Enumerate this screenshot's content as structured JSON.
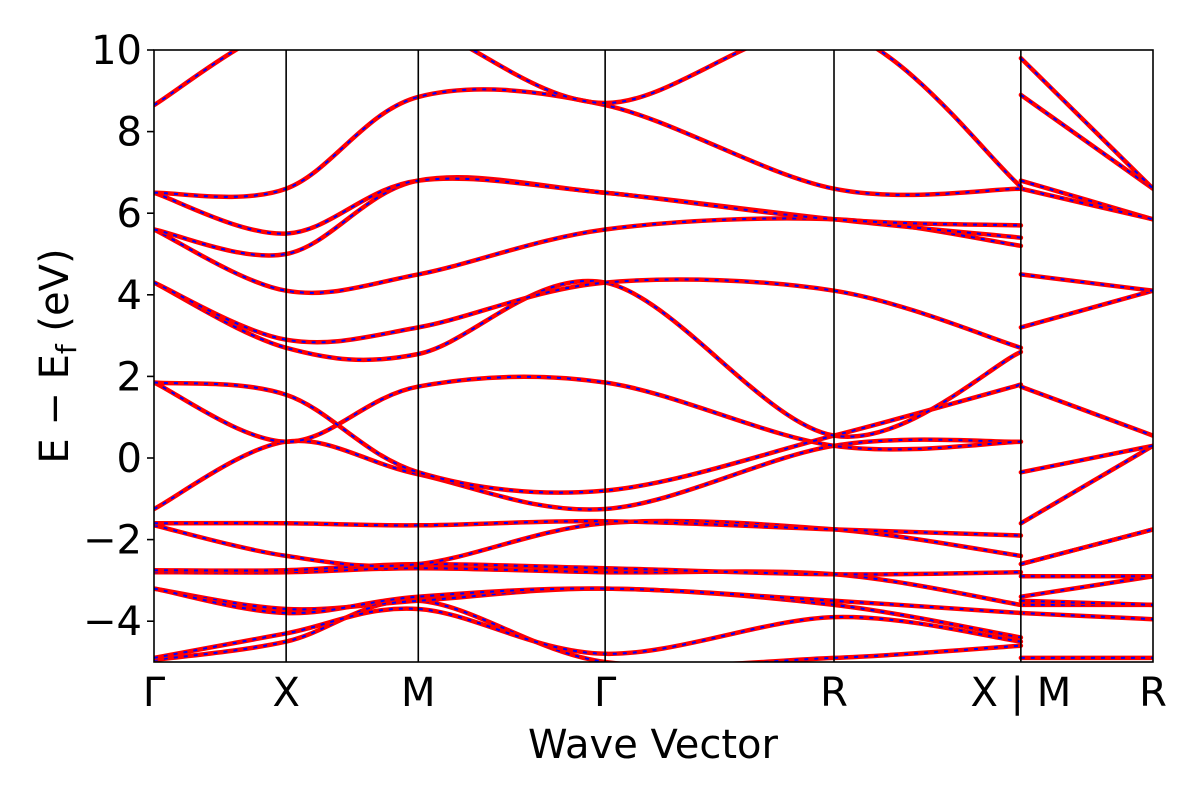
{
  "chart_data": {
    "type": "line",
    "xlabel": "Wave Vector",
    "ylabel": "E − E",
    "ylabel_subscript": "f",
    "ylabel_unit": " (eV)",
    "ylim": [
      -5,
      10
    ],
    "yticks": [
      -4,
      -2,
      0,
      2,
      4,
      6,
      8,
      10
    ],
    "ytick_labels": [
      "−4",
      "−2",
      "0",
      "2",
      "4",
      "6",
      "8",
      "10"
    ],
    "kpoints": [
      {
        "label": "Γ",
        "x": 0.0
      },
      {
        "label": "X",
        "x": 0.5
      },
      {
        "label": "M",
        "x": 1.0
      },
      {
        "label": "Γ",
        "x": 1.707
      },
      {
        "label": "R",
        "x": 2.573
      },
      {
        "label": "X | M",
        "x": 3.28
      },
      {
        "label": "R",
        "x": 3.78
      }
    ],
    "xlim": [
      0.0,
      3.78
    ],
    "series_style": {
      "dft": {
        "color": "#ff0000",
        "style": "solid"
      },
      "model": {
        "color": "#0000ff",
        "style": "dashed"
      }
    },
    "bands": [
      [
        [
          0,
          -4.95
        ],
        [
          0.5,
          -4.5
        ],
        [
          1.0,
          -3.5
        ],
        [
          1.707,
          -5.0
        ],
        [
          2.573,
          -4.9
        ],
        [
          3.28,
          -4.6
        ],
        [
          3.28,
          -4.9
        ],
        [
          3.78,
          -4.9
        ]
      ],
      [
        [
          0,
          -4.9
        ],
        [
          0.5,
          -4.3
        ],
        [
          1.0,
          -3.7
        ],
        [
          1.707,
          -4.8
        ],
        [
          2.573,
          -3.9
        ],
        [
          3.28,
          -4.5
        ],
        [
          3.28,
          -3.8
        ],
        [
          3.78,
          -3.95
        ]
      ],
      [
        [
          0,
          -3.2
        ],
        [
          0.5,
          -3.7
        ],
        [
          1.0,
          -3.5
        ],
        [
          1.707,
          -3.2
        ],
        [
          2.573,
          -3.6
        ],
        [
          3.28,
          -4.4
        ],
        [
          3.28,
          -3.6
        ],
        [
          3.78,
          -3.6
        ]
      ],
      [
        [
          0,
          -3.2
        ],
        [
          0.5,
          -3.8
        ],
        [
          1.0,
          -3.4
        ],
        [
          1.707,
          -3.2
        ],
        [
          2.573,
          -3.5
        ],
        [
          3.28,
          -3.8
        ],
        [
          3.28,
          -3.5
        ],
        [
          3.78,
          -3.6
        ]
      ],
      [
        [
          0,
          -2.8
        ],
        [
          0.5,
          -2.8
        ],
        [
          1.0,
          -2.7
        ],
        [
          1.707,
          -2.8
        ],
        [
          2.573,
          -2.85
        ],
        [
          3.28,
          -3.6
        ],
        [
          3.28,
          -3.4
        ],
        [
          3.78,
          -2.9
        ]
      ],
      [
        [
          0,
          -2.75
        ],
        [
          0.5,
          -2.75
        ],
        [
          1.0,
          -2.6
        ],
        [
          1.707,
          -2.7
        ],
        [
          2.573,
          -2.85
        ],
        [
          3.28,
          -2.8
        ],
        [
          3.28,
          -2.9
        ],
        [
          3.78,
          -2.9
        ]
      ],
      [
        [
          0,
          -1.65
        ],
        [
          0.5,
          -2.4
        ],
        [
          1.0,
          -2.6
        ],
        [
          1.707,
          -1.6
        ],
        [
          2.573,
          -1.75
        ],
        [
          3.28,
          -2.4
        ],
        [
          3.28,
          -2.6
        ],
        [
          3.78,
          -1.75
        ]
      ],
      [
        [
          0,
          -1.6
        ],
        [
          0.5,
          -1.6
        ],
        [
          1.0,
          -1.65
        ],
        [
          1.707,
          -1.55
        ],
        [
          2.573,
          -1.75
        ],
        [
          3.28,
          -1.9
        ],
        [
          3.28,
          -2.6
        ],
        [
          3.78,
          -1.75
        ]
      ],
      [
        [
          0,
          -1.25
        ],
        [
          0.5,
          0.4
        ],
        [
          1.0,
          -0.4
        ],
        [
          1.707,
          -1.25
        ],
        [
          2.573,
          0.3
        ],
        [
          3.28,
          0.4
        ],
        [
          3.28,
          -1.6
        ],
        [
          3.78,
          0.3
        ]
      ],
      [
        [
          0,
          1.85
        ],
        [
          0.5,
          0.4
        ],
        [
          1.0,
          1.75
        ],
        [
          1.707,
          1.85
        ],
        [
          2.573,
          0.3
        ],
        [
          3.28,
          0.4
        ],
        [
          3.28,
          -0.35
        ],
        [
          3.78,
          0.3
        ]
      ],
      [
        [
          0,
          1.85
        ],
        [
          0.5,
          1.55
        ],
        [
          1.0,
          -0.35
        ],
        [
          1.707,
          -0.8
        ],
        [
          2.573,
          0.55
        ],
        [
          3.28,
          1.8
        ],
        [
          3.28,
          1.75
        ],
        [
          3.78,
          0.55
        ]
      ],
      [
        [
          0,
          4.3
        ],
        [
          0.5,
          2.7
        ],
        [
          1.0,
          2.55
        ],
        [
          1.707,
          4.3
        ],
        [
          2.573,
          0.55
        ],
        [
          3.28,
          2.6
        ],
        [
          3.28,
          3.2
        ],
        [
          3.78,
          4.1
        ]
      ],
      [
        [
          0,
          4.3
        ],
        [
          0.5,
          2.9
        ],
        [
          1.0,
          3.2
        ],
        [
          1.707,
          4.3
        ],
        [
          2.573,
          4.1
        ],
        [
          3.28,
          2.7
        ],
        [
          3.28,
          4.5
        ],
        [
          3.78,
          4.1
        ]
      ],
      [
        [
          0,
          5.6
        ],
        [
          0.5,
          4.1
        ],
        [
          1.0,
          4.5
        ],
        [
          1.707,
          5.6
        ],
        [
          2.573,
          5.85
        ],
        [
          3.28,
          5.2
        ],
        [
          3.28,
          6.8
        ],
        [
          3.78,
          5.85
        ]
      ],
      [
        [
          0,
          5.6
        ],
        [
          0.5,
          5.0
        ],
        [
          1.0,
          6.8
        ],
        [
          1.707,
          6.5
        ],
        [
          2.573,
          5.85
        ],
        [
          3.28,
          5.4
        ],
        [
          3.28,
          6.6
        ],
        [
          3.78,
          5.85
        ]
      ],
      [
        [
          0,
          6.5
        ],
        [
          0.5,
          5.5
        ],
        [
          1.0,
          6.8
        ],
        [
          1.707,
          6.5
        ],
        [
          2.573,
          5.85
        ],
        [
          3.28,
          5.7
        ],
        [
          3.28,
          8.9
        ],
        [
          3.78,
          6.6
        ]
      ],
      [
        [
          0,
          6.5
        ],
        [
          0.5,
          6.6
        ],
        [
          1.0,
          8.85
        ],
        [
          1.707,
          8.65
        ],
        [
          2.573,
          6.6
        ],
        [
          3.28,
          6.6
        ],
        [
          3.28,
          9.8
        ],
        [
          3.78,
          6.6
        ]
      ],
      [
        [
          0,
          8.65
        ],
        [
          0.5,
          10.6
        ],
        [
          1.0,
          10.6
        ],
        [
          1.707,
          8.7
        ],
        [
          2.573,
          10.5
        ],
        [
          3.28,
          6.65
        ],
        [
          3.28,
          10.5
        ],
        [
          3.78,
          10.5
        ]
      ]
    ]
  }
}
